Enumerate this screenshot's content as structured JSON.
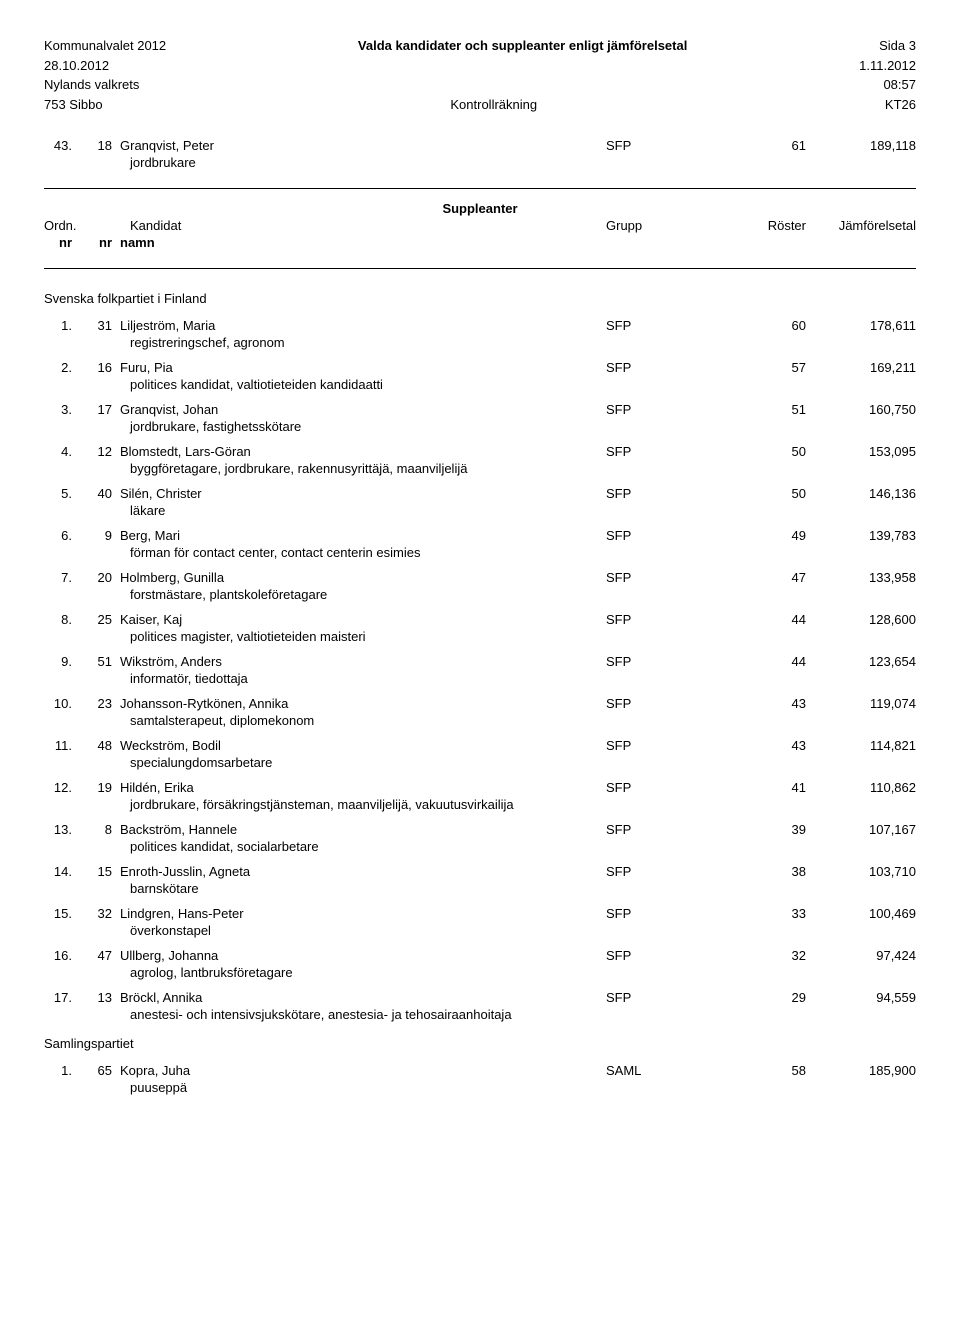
{
  "header": {
    "election": "Kommunalvalet 2012",
    "title": "Valda kandidater och suppleanter enligt jämförelsetal",
    "page_label": "Sida 3",
    "date_left": "28.10.2012",
    "date_right": "1.11.2012",
    "district": "Nylands valkrets",
    "time": "08:57",
    "code": "753 Sibbo",
    "method": "Kontrollräkning",
    "kt": "KT26"
  },
  "top_entry": {
    "ord": "43.",
    "cand": "18",
    "name": "Granqvist, Peter",
    "group": "SFP",
    "votes": "61",
    "comp": "189,118",
    "occupation": "jordbrukare"
  },
  "supp_title": "Suppleanter",
  "table_header": {
    "ordn": "Ordn.",
    "kandidat": "Kandidat",
    "grupp": "Grupp",
    "roster": "Röster",
    "jfr": "Jämförelsetal",
    "nr1": "nr",
    "nr2": "nr",
    "namn": "namn"
  },
  "section1": {
    "title": "Svenska folkpartiet i Finland",
    "rows": [
      {
        "ord": "1.",
        "cand": "31",
        "name": "Liljeström, Maria",
        "group": "SFP",
        "votes": "60",
        "comp": "178,611",
        "occupation": "registreringschef, agronom"
      },
      {
        "ord": "2.",
        "cand": "16",
        "name": "Furu, Pia",
        "group": "SFP",
        "votes": "57",
        "comp": "169,211",
        "occupation": "politices kandidat, valtiotieteiden kandidaatti"
      },
      {
        "ord": "3.",
        "cand": "17",
        "name": "Granqvist, Johan",
        "group": "SFP",
        "votes": "51",
        "comp": "160,750",
        "occupation": "jordbrukare, fastighetsskötare"
      },
      {
        "ord": "4.",
        "cand": "12",
        "name": "Blomstedt, Lars-Göran",
        "group": "SFP",
        "votes": "50",
        "comp": "153,095",
        "occupation": "byggföretagare, jordbrukare, rakennusyrittäjä, maanviljelijä"
      },
      {
        "ord": "5.",
        "cand": "40",
        "name": "Silén, Christer",
        "group": "SFP",
        "votes": "50",
        "comp": "146,136",
        "occupation": "läkare"
      },
      {
        "ord": "6.",
        "cand": "9",
        "name": "Berg, Mari",
        "group": "SFP",
        "votes": "49",
        "comp": "139,783",
        "occupation": "förman för contact center, contact centerin esimies"
      },
      {
        "ord": "7.",
        "cand": "20",
        "name": "Holmberg, Gunilla",
        "group": "SFP",
        "votes": "47",
        "comp": "133,958",
        "occupation": "forstmästare, plantskoleföretagare"
      },
      {
        "ord": "8.",
        "cand": "25",
        "name": "Kaiser, Kaj",
        "group": "SFP",
        "votes": "44",
        "comp": "128,600",
        "occupation": "politices magister, valtiotieteiden maisteri"
      },
      {
        "ord": "9.",
        "cand": "51",
        "name": "Wikström, Anders",
        "group": "SFP",
        "votes": "44",
        "comp": "123,654",
        "occupation": "informatör, tiedottaja"
      },
      {
        "ord": "10.",
        "cand": "23",
        "name": "Johansson-Rytkönen, Annika",
        "group": "SFP",
        "votes": "43",
        "comp": "119,074",
        "occupation": "samtalsterapeut, diplomekonom"
      },
      {
        "ord": "11.",
        "cand": "48",
        "name": "Weckström, Bodil",
        "group": "SFP",
        "votes": "43",
        "comp": "114,821",
        "occupation": "specialungdomsarbetare"
      },
      {
        "ord": "12.",
        "cand": "19",
        "name": "Hildén, Erika",
        "group": "SFP",
        "votes": "41",
        "comp": "110,862",
        "occupation": "jordbrukare, försäkringstjänsteman, maanviljelijä, vakuutusvirkailija"
      },
      {
        "ord": "13.",
        "cand": "8",
        "name": "Backström, Hannele",
        "group": "SFP",
        "votes": "39",
        "comp": "107,167",
        "occupation": "politices kandidat, socialarbetare"
      },
      {
        "ord": "14.",
        "cand": "15",
        "name": "Enroth-Jusslin, Agneta",
        "group": "SFP",
        "votes": "38",
        "comp": "103,710",
        "occupation": "barnskötare"
      },
      {
        "ord": "15.",
        "cand": "32",
        "name": "Lindgren, Hans-Peter",
        "group": "SFP",
        "votes": "33",
        "comp": "100,469",
        "occupation": "överkonstapel"
      },
      {
        "ord": "16.",
        "cand": "47",
        "name": "Ullberg, Johanna",
        "group": "SFP",
        "votes": "32",
        "comp": "97,424",
        "occupation": "agrolog, lantbruksföretagare"
      },
      {
        "ord": "17.",
        "cand": "13",
        "name": "Bröckl, Annika",
        "group": "SFP",
        "votes": "29",
        "comp": "94,559",
        "occupation": "anestesi- och intensivsjukskötare, anestesia- ja tehosairaanhoitaja"
      }
    ]
  },
  "section2": {
    "title": "Samlingspartiet",
    "rows": [
      {
        "ord": "1.",
        "cand": "65",
        "name": "Kopra, Juha",
        "group": "SAML",
        "votes": "58",
        "comp": "185,900",
        "occupation": "puuseppä"
      }
    ]
  }
}
